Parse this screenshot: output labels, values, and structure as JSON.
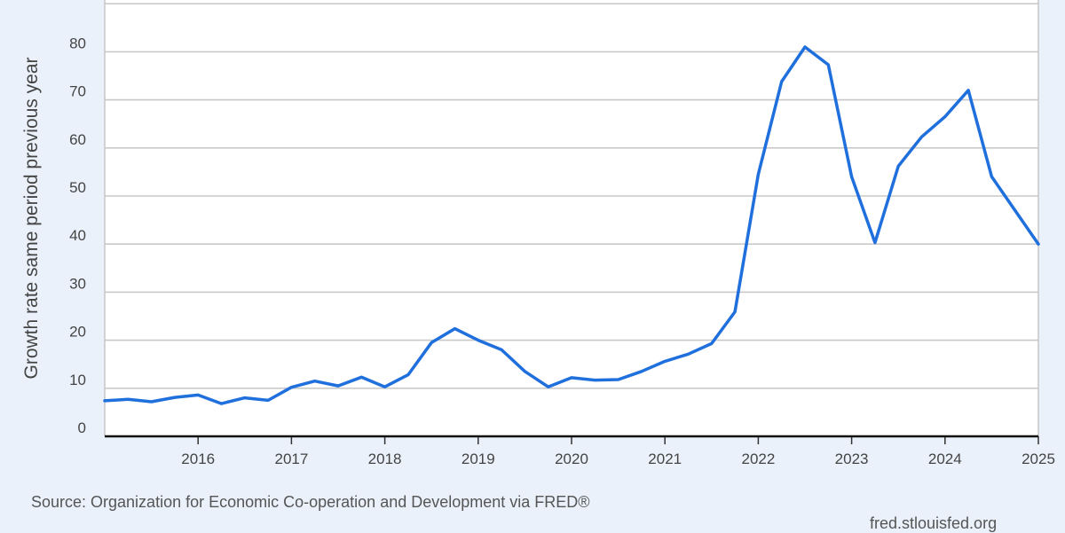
{
  "chart_data": {
    "type": "line",
    "title": "",
    "xlabel": "",
    "ylabel": "Growth rate same period previous year",
    "ylim": [
      0,
      90
    ],
    "xlim": [
      2015.0,
      2025.0
    ],
    "y_ticks": [
      0,
      10,
      20,
      30,
      40,
      50,
      60,
      70,
      80
    ],
    "x_ticks": [
      "2016",
      "2017",
      "2018",
      "2019",
      "2020",
      "2021",
      "2022",
      "2023",
      "2024",
      "2025"
    ],
    "grid": true,
    "line_color": "#1f6fdc",
    "series": [
      {
        "x": [
          "2015-01-01",
          "2015-04-01",
          "2015-07-01",
          "2015-10-01",
          "2016-01-01",
          "2016-04-01",
          "2016-07-01",
          "2016-10-01",
          "2017-01-01",
          "2017-04-01",
          "2017-07-01",
          "2017-10-01",
          "2018-01-01",
          "2018-04-01",
          "2018-07-01",
          "2018-10-01",
          "2019-01-01",
          "2019-04-01",
          "2019-07-01",
          "2019-10-01",
          "2020-01-01",
          "2020-04-01",
          "2020-07-01",
          "2020-10-01",
          "2021-01-01",
          "2021-04-01",
          "2021-07-01",
          "2021-10-01",
          "2022-01-01",
          "2022-04-01",
          "2022-07-01",
          "2022-10-01",
          "2023-01-01",
          "2023-04-01",
          "2023-07-01",
          "2023-10-01",
          "2024-01-01",
          "2024-04-01",
          "2024-07-01",
          "2024-10-01",
          "2025-01-01"
        ],
        "values": [
          7.4,
          7.7,
          7.2,
          8.1,
          8.6,
          6.8,
          8.0,
          7.5,
          10.2,
          11.5,
          10.5,
          12.3,
          10.3,
          12.8,
          19.5,
          22.4,
          20.0,
          18.0,
          13.5,
          10.3,
          12.2,
          11.7,
          11.8,
          13.5,
          15.6,
          17.1,
          19.3,
          25.9,
          54.5,
          73.8,
          81.0,
          77.3,
          54.0,
          40.3,
          56.2,
          62.3,
          66.5,
          72.0,
          54.0,
          47.0,
          40.0
        ]
      }
    ]
  },
  "footer": {
    "source": "Source: Organization for Economic Co-operation and Development via FRED®",
    "credit": "fred.stlouisfed.org"
  }
}
